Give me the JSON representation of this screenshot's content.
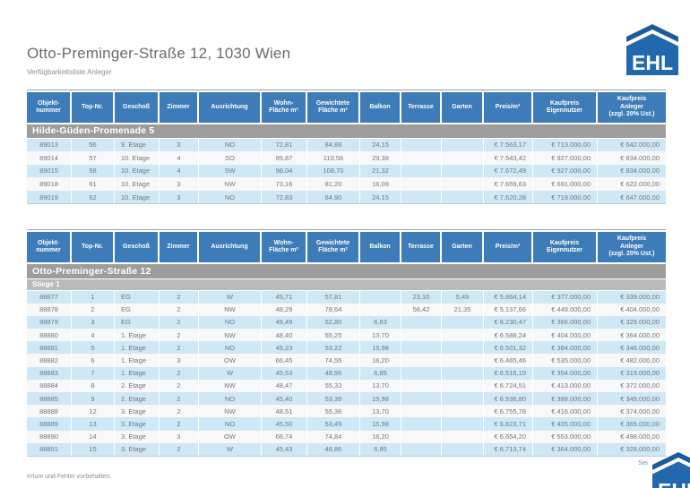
{
  "page": {
    "title": "Otto-Preminger-Straße 12, 1030 Wien",
    "subtitle": "Verfügbarkeitsliste Anleger",
    "footer_left": "Irrtum und Fehler vorbehalten.",
    "footer_right": "Sei",
    "logo_text": "EHL"
  },
  "colors": {
    "header_blue": "#3d7cb8",
    "row_light_blue": "#cfe8f6",
    "row_white": "#f8f8f8",
    "group_bar_gray": "#9d9d9d",
    "subgroup_bar_gray": "#bababa",
    "logo_blue": "#2169ac",
    "logo_roof_blue": "#1b5a9b",
    "cell_text_gray": "#73767a"
  },
  "header_rows": [
    [
      "Objekt-\nnummer",
      "Top-Nr.",
      "Geschoß",
      "Zimmer",
      "Ausrichtung",
      "Wohn-\nFläche m²",
      "Gewichtete\nFläche m²",
      "Balkon",
      "Terrasse",
      "Garten",
      "Preis/m²",
      "Kaufpreis\nEigennutzer",
      "Kaufpreis\nAnleger\n(zzgl. 20% Ust.)"
    ]
  ],
  "table1": {
    "group": "Hilde-Güden-Promenade 5",
    "rows": [
      [
        "89013",
        "56",
        "9. Etage",
        "3",
        "NO",
        "72,81",
        "84,88",
        "24,15",
        "",
        "",
        "€ 7.563,17",
        "€ 713.000,00",
        "€ 642.000,00"
      ],
      [
        "89014",
        "57",
        "10. Etage",
        "4",
        "SO",
        "95,87",
        "110,56",
        "29,38",
        "",
        "",
        "€ 7.543,42",
        "€ 927.000,00",
        "€ 834.000,00"
      ],
      [
        "89015",
        "58",
        "10. Etage",
        "4",
        "SW",
        "98,04",
        "108,70",
        "21,32",
        "",
        "",
        "€ 7.672,49",
        "€ 927.000,00",
        "€ 834.000,00"
      ],
      [
        "89018",
        "61",
        "10. Etage",
        "3",
        "NW",
        "73,16",
        "81,20",
        "16,09",
        "",
        "",
        "€ 7.659,63",
        "€ 691.000,00",
        "€ 622.000,00"
      ],
      [
        "89019",
        "62",
        "10. Etage",
        "3",
        "NO",
        "72,83",
        "84,90",
        "24,15",
        "",
        "",
        "€ 7.620,28",
        "€ 719.000,00",
        "€ 647.000,00"
      ]
    ]
  },
  "table2": {
    "group": "Otto-Preminger-Straße 12",
    "subgroup": "Stiege 1",
    "rows": [
      [
        "88877",
        "1",
        "EG",
        "2",
        "W",
        "45,71",
        "57,81",
        "",
        "23,10",
        "5,49",
        "€ 5.864,14",
        "€ 377.000,00",
        "€ 339.000,00"
      ],
      [
        "88878",
        "2",
        "EG",
        "2",
        "NW",
        "48,29",
        "78,64",
        "",
        "56,42",
        "21,35",
        "€ 5.137,66",
        "€ 449.000,00",
        "€ 404.000,00"
      ],
      [
        "88879",
        "3",
        "EG",
        "2",
        "NO",
        "49,49",
        "52,80",
        "6,63",
        "",
        "",
        "€ 6.230,47",
        "€ 366.000,00",
        "€ 329.000,00"
      ],
      [
        "88880",
        "4",
        "1. Etage",
        "2",
        "NW",
        "48,40",
        "55,25",
        "13,70",
        "",
        "",
        "€ 6.588,24",
        "€ 404.000,00",
        "€ 364.000,00"
      ],
      [
        "88881",
        "5",
        "1. Etage",
        "2",
        "NO",
        "45,23",
        "53,22",
        "15,98",
        "",
        "",
        "€ 6.501,32",
        "€ 384.000,00",
        "€ 346.000,00"
      ],
      [
        "88882",
        "6",
        "1. Etage",
        "3",
        "OW",
        "66,45",
        "74,55",
        "16,20",
        "",
        "",
        "€ 6.465,46",
        "€ 535.000,00",
        "€ 482.000,00"
      ],
      [
        "88883",
        "7",
        "1. Etage",
        "2",
        "W",
        "45,53",
        "48,96",
        "6,85",
        "",
        "",
        "€ 6.516,19",
        "€ 354.000,00",
        "€ 319.000,00"
      ],
      [
        "88884",
        "8",
        "2. Etage",
        "2",
        "NW",
        "48,47",
        "55,32",
        "13,70",
        "",
        "",
        "€ 6.724,51",
        "€ 413.000,00",
        "€ 372.000,00"
      ],
      [
        "88885",
        "9",
        "2. Etage",
        "2",
        "NO",
        "45,40",
        "53,39",
        "15,98",
        "",
        "",
        "€ 6.536,80",
        "€ 388.000,00",
        "€ 349.000,00"
      ],
      [
        "88888",
        "12",
        "3. Etage",
        "2",
        "NW",
        "48,51",
        "55,36",
        "13,70",
        "",
        "",
        "€ 6.755,78",
        "€ 416.000,00",
        "€ 374.000,00"
      ],
      [
        "88889",
        "13",
        "3. Etage",
        "2",
        "NO",
        "45,50",
        "53,49",
        "15,98",
        "",
        "",
        "€ 6.823,71",
        "€ 405.000,00",
        "€ 365.000,00"
      ],
      [
        "88890",
        "14",
        "3. Etage",
        "3",
        "OW",
        "66,74",
        "74,84",
        "16,20",
        "",
        "",
        "€ 6.654,20",
        "€ 553.000,00",
        "€ 498.000,00"
      ],
      [
        "88891",
        "15",
        "3. Etage",
        "2",
        "W",
        "45,43",
        "48,86",
        "6,85",
        "",
        "",
        "€ 6.713,74",
        "€ 364.000,00",
        "€ 328.000,00"
      ]
    ]
  }
}
